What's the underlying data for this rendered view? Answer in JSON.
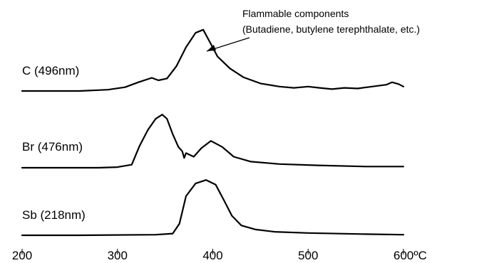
{
  "chart_data": {
    "type": "line",
    "title": "",
    "xlabel": "",
    "ylabel": "",
    "x_unit": "ºC",
    "xlim": [
      200,
      600
    ],
    "x_ticks": [
      {
        "value": 200,
        "label": "200"
      },
      {
        "value": 300,
        "label": "300"
      },
      {
        "value": 400,
        "label": "400"
      },
      {
        "value": 500,
        "label": "500"
      },
      {
        "value": 600,
        "label": "600ºC"
      }
    ],
    "y_axis": "relative intensity (unlabeled, offset traces)",
    "series": [
      {
        "name": "C (496nm)",
        "points": [
          [
            200,
            0.0
          ],
          [
            230,
            0.0
          ],
          [
            260,
            0.0
          ],
          [
            290,
            0.02
          ],
          [
            308,
            0.06
          ],
          [
            322,
            0.14
          ],
          [
            336,
            0.21
          ],
          [
            343,
            0.17
          ],
          [
            352,
            0.2
          ],
          [
            362,
            0.4
          ],
          [
            372,
            0.7
          ],
          [
            382,
            0.93
          ],
          [
            390,
            0.98
          ],
          [
            397,
            0.78
          ],
          [
            405,
            0.55
          ],
          [
            418,
            0.36
          ],
          [
            432,
            0.22
          ],
          [
            450,
            0.12
          ],
          [
            470,
            0.07
          ],
          [
            485,
            0.05
          ],
          [
            500,
            0.07
          ],
          [
            512,
            0.05
          ],
          [
            525,
            0.03
          ],
          [
            538,
            0.05
          ],
          [
            552,
            0.04
          ],
          [
            567,
            0.07
          ],
          [
            582,
            0.1
          ],
          [
            588,
            0.14
          ],
          [
            595,
            0.11
          ],
          [
            600,
            0.07
          ],
          [
            610,
            0.04
          ],
          [
            620,
            0.05
          ],
          [
            630,
            0.03
          ]
        ]
      },
      {
        "name": "Br (476nm)",
        "points": [
          [
            200,
            0.0
          ],
          [
            240,
            0.0
          ],
          [
            280,
            0.0
          ],
          [
            300,
            0.01
          ],
          [
            315,
            0.05
          ],
          [
            323,
            0.35
          ],
          [
            332,
            0.62
          ],
          [
            340,
            0.8
          ],
          [
            347,
            0.87
          ],
          [
            352,
            0.8
          ],
          [
            358,
            0.55
          ],
          [
            364,
            0.34
          ],
          [
            368,
            0.27
          ],
          [
            370,
            0.16
          ],
          [
            372,
            0.24
          ],
          [
            380,
            0.18
          ],
          [
            388,
            0.32
          ],
          [
            398,
            0.44
          ],
          [
            410,
            0.34
          ],
          [
            422,
            0.18
          ],
          [
            440,
            0.1
          ],
          [
            470,
            0.06
          ],
          [
            510,
            0.04
          ],
          [
            560,
            0.02
          ],
          [
            600,
            0.02
          ],
          [
            630,
            0.02
          ]
        ]
      },
      {
        "name": "Sb (218nm)",
        "points": [
          [
            200,
            0.0
          ],
          [
            260,
            0.0
          ],
          [
            340,
            0.01
          ],
          [
            358,
            0.03
          ],
          [
            365,
            0.2
          ],
          [
            372,
            0.68
          ],
          [
            382,
            0.9
          ],
          [
            393,
            0.96
          ],
          [
            403,
            0.88
          ],
          [
            412,
            0.6
          ],
          [
            420,
            0.34
          ],
          [
            430,
            0.17
          ],
          [
            445,
            0.1
          ],
          [
            465,
            0.06
          ],
          [
            500,
            0.04
          ],
          [
            560,
            0.02
          ],
          [
            600,
            0.01
          ],
          [
            630,
            0.01
          ]
        ]
      }
    ],
    "annotations": [
      {
        "text_lines": [
          "Flammable components",
          "(Butadiene, butylene terephthalate, etc.)"
        ],
        "points_to_series": "C (496nm)",
        "points_to_x": 397
      }
    ],
    "grid": false,
    "legend": "none (series labeled at left of each trace)"
  }
}
